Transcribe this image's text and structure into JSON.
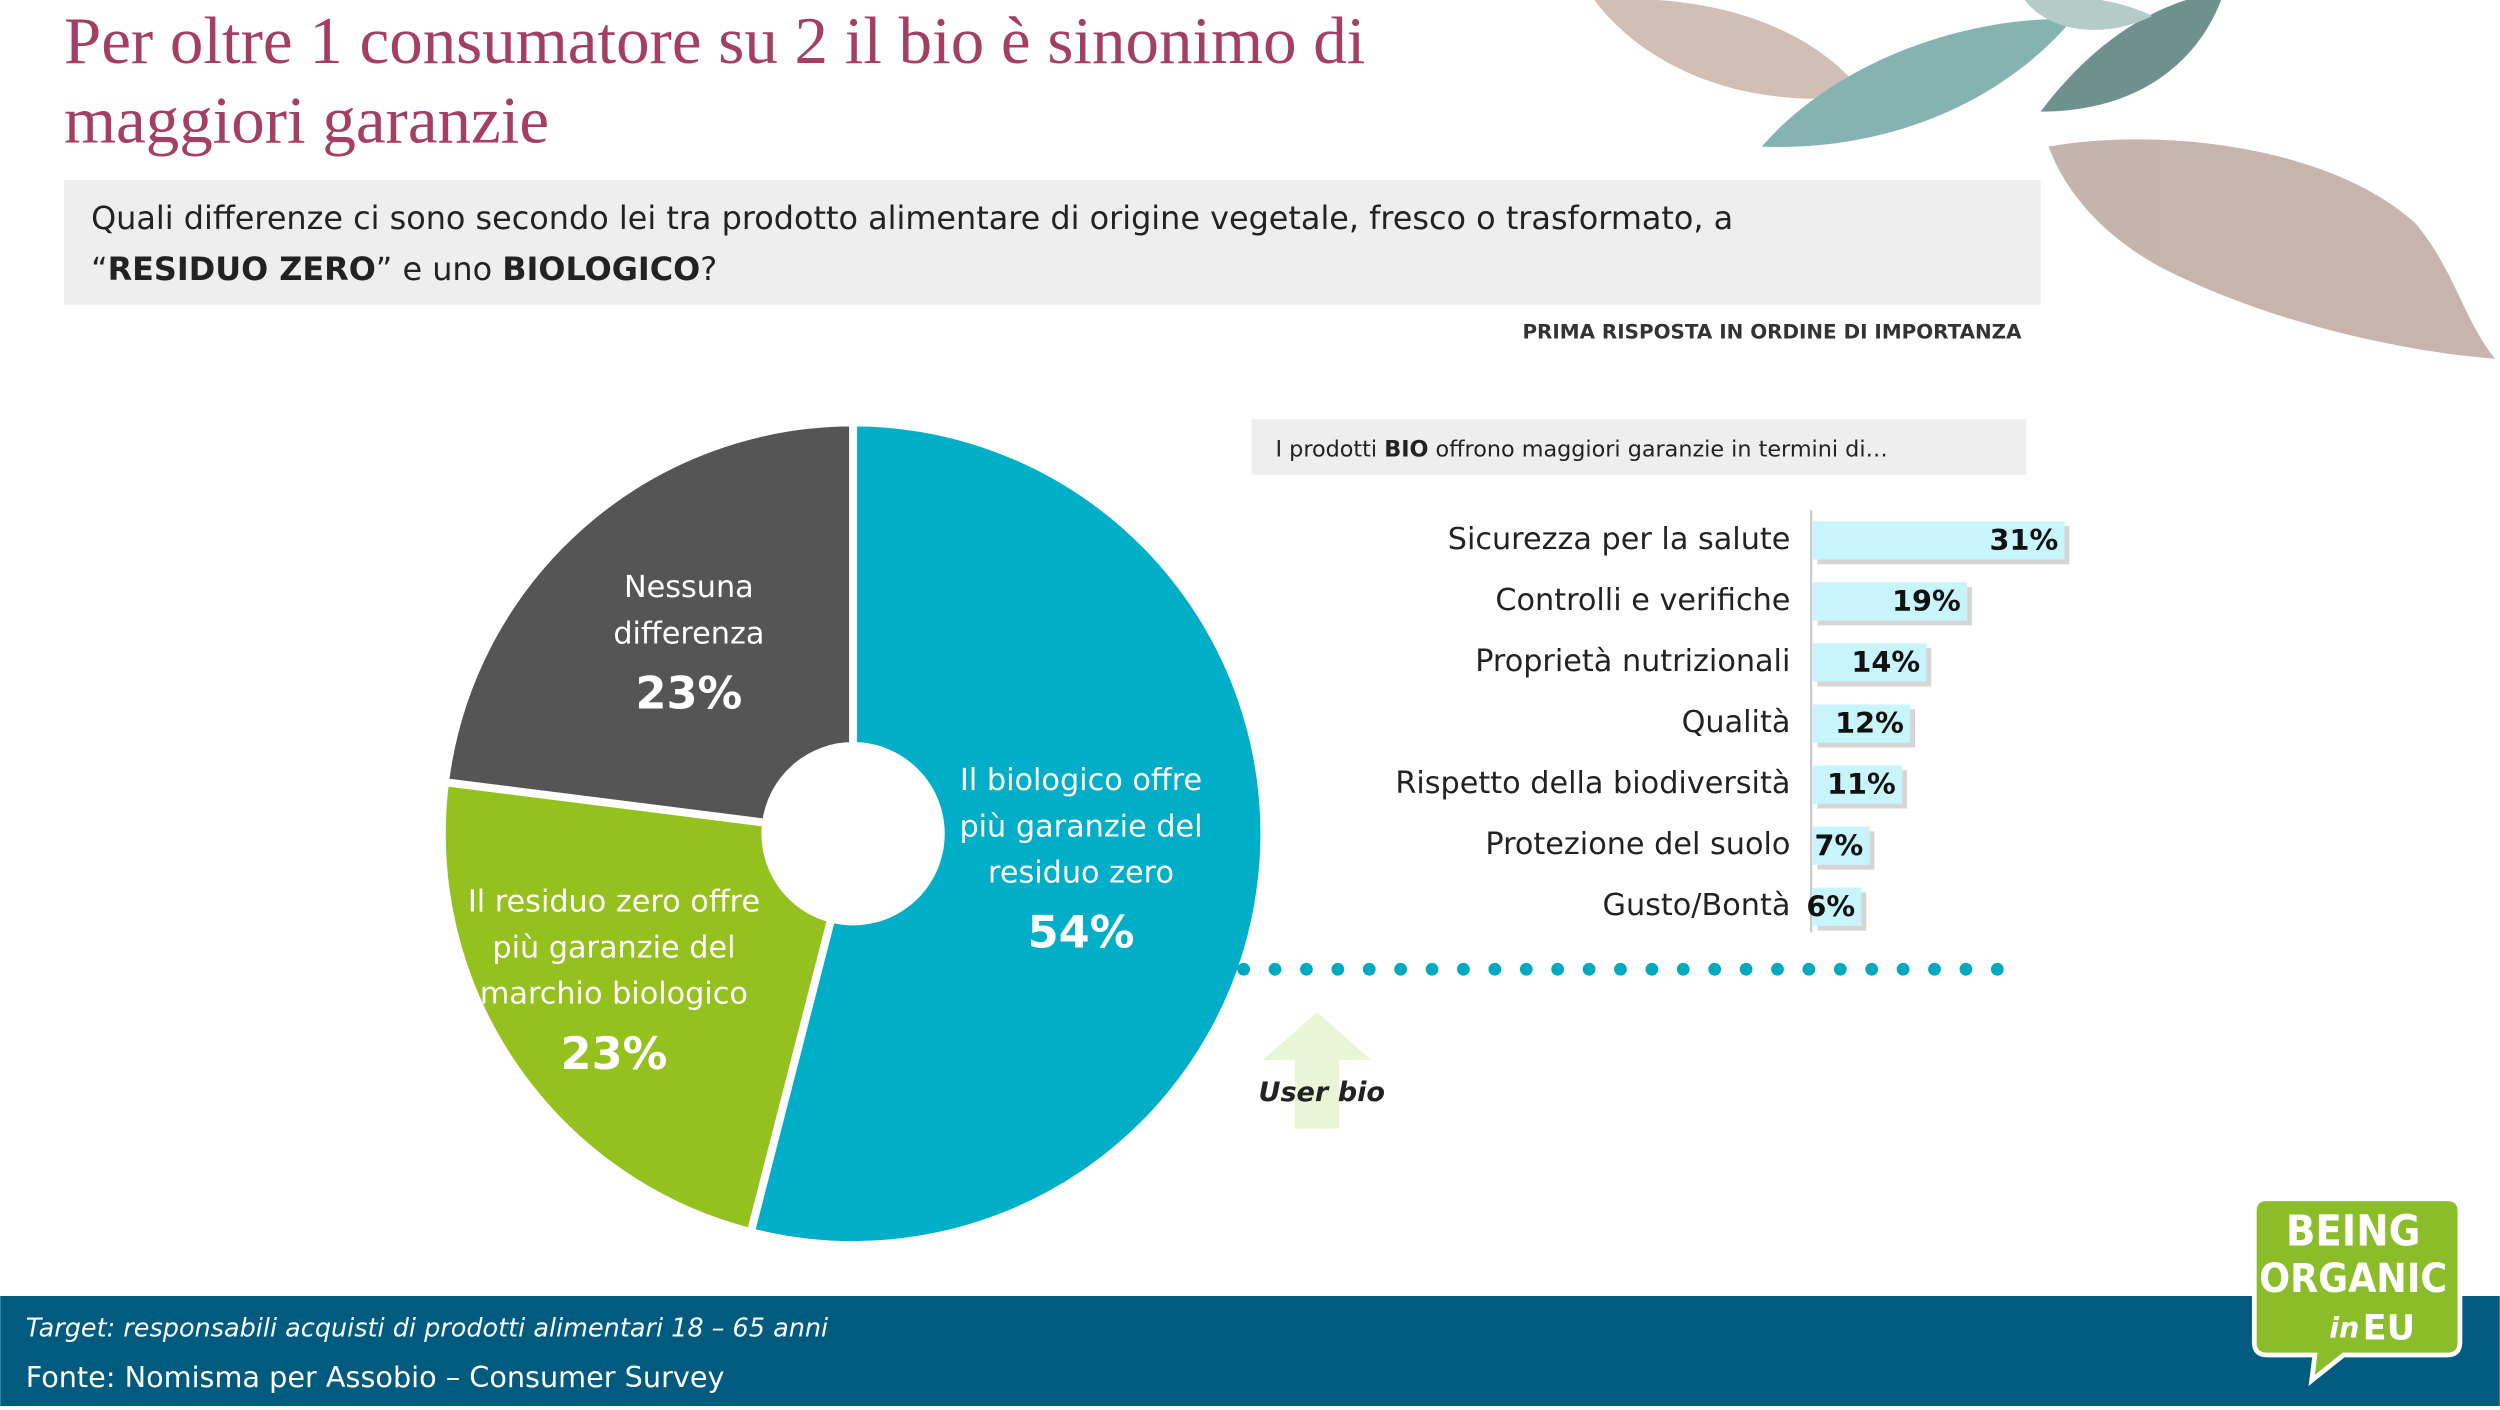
{
  "title": "Per oltre 1 consumatore su 2 il  bio è sinonimo di maggiori garanzie",
  "question": [
    {
      "text": "Quali differenze ci sono secondo lei tra prodotto alimentare di origine vegetale, fresco o trasformato, a",
      "bold": false
    },
    {
      "text": "“",
      "bold": false
    },
    {
      "text": "RESIDUO ZERO",
      "bold": true
    },
    {
      "text": "” e uno ",
      "bold": false
    },
    {
      "text": "BIOLOGICO",
      "bold": true
    },
    {
      "text": "?",
      "bold": false
    }
  ],
  "note": "PRIMA RISPOSTA IN ORDINE DI IMPORTANZA",
  "chart_data": [
    {
      "type": "pie",
      "donut": true,
      "categories": [
        "Il biologico offre più garanzie del residuo zero",
        "Il residuo zero offre più garanzie del marchio biologico",
        "Nessuna differenza"
      ],
      "values": [
        54,
        23,
        23
      ],
      "value_labels": [
        "54%",
        "23%",
        "23%"
      ],
      "colors": [
        "#00afc7",
        "#95c11f",
        "#555555"
      ]
    },
    {
      "type": "bar",
      "orientation": "horizontal",
      "subtitle": [
        {
          "text": "I prodotti  ",
          "bold": false
        },
        {
          "text": "BIO",
          "bold": true
        },
        {
          "text": " offrono maggiori garanzie in termini di…",
          "bold": false
        }
      ],
      "categories": [
        "Sicurezza per la salute",
        "Controlli e verifiche",
        "Proprietà nutrizionali",
        "Qualità",
        "Rispetto della biodiversità",
        "Protezione del suolo",
        "Gusto/Bontà"
      ],
      "values": [
        31,
        19,
        14,
        12,
        11,
        7,
        6
      ],
      "value_labels": [
        "31%",
        "19%",
        "14%",
        "12%",
        "11%",
        "7%",
        "6%"
      ],
      "color": "#c8f4fb"
    }
  ],
  "user_label": "User bio",
  "footer": {
    "target": "Target: responsabili acquisti di prodotti alimentari 18 – 65 anni",
    "source": "Fonte: Nomisma per Assobio – Consumer Survey"
  },
  "logo": [
    "BEING",
    "ORGANIC",
    "in",
    "EU"
  ]
}
